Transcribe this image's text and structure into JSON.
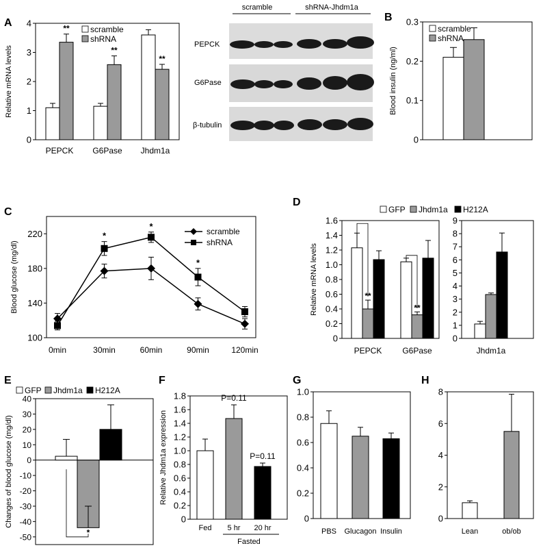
{
  "panel_labels": [
    "A",
    "B",
    "C",
    "D",
    "E",
    "F",
    "G",
    "H"
  ],
  "legend": {
    "scramble": "scramble",
    "shRNA": "shRNA",
    "GFP": "GFP",
    "Jhdm1a": "Jhdm1a",
    "H212A": "H212A"
  },
  "sig": {
    "double": "**",
    "single": "*"
  },
  "blot": {
    "group_labels": [
      "scramble",
      "shRNA-Jhdm1a"
    ],
    "bands": [
      "PEPCK",
      "G6Pase",
      "β-tubulin"
    ]
  },
  "colors": {
    "white": "#ffffff",
    "gray": "#9a9a9a",
    "black": "#000000"
  },
  "chart_data": [
    {
      "id": "A",
      "type": "bar",
      "ylabel": "Relative mRNA levels",
      "ylim": [
        0,
        4
      ],
      "yticks": [
        0,
        1,
        2,
        3,
        4
      ],
      "categories": [
        "PEPCK",
        "G6Pase",
        "Jhdm1a"
      ],
      "legend": [
        "scramble",
        "shRNA"
      ],
      "series": [
        {
          "name": "scramble",
          "color": "white",
          "values": [
            1.1,
            1.15,
            3.6
          ],
          "errors": [
            0.15,
            0.1,
            0.18
          ]
        },
        {
          "name": "shRNA",
          "color": "gray",
          "values": [
            3.35,
            2.58,
            2.42
          ],
          "errors": [
            0.28,
            0.3,
            0.17
          ]
        }
      ],
      "annotations": [
        "**",
        "**",
        "**"
      ]
    },
    {
      "id": "B",
      "type": "bar",
      "ylabel": "Blood insulin (ng/ml)",
      "ylim": [
        0,
        0.3
      ],
      "yticks": [
        0,
        0.1,
        0.2,
        0.3
      ],
      "categories": [
        ""
      ],
      "legend": [
        "scramble",
        "shRNA"
      ],
      "series": [
        {
          "name": "scramble",
          "color": "white",
          "values": [
            0.21
          ],
          "errors": [
            0.025
          ]
        },
        {
          "name": "shRNA",
          "color": "gray",
          "values": [
            0.255
          ],
          "errors": [
            0.03
          ]
        }
      ]
    },
    {
      "id": "C",
      "type": "line",
      "ylabel": "Blood glucose (mg/dl)",
      "ylim": [
        100,
        240
      ],
      "yticks": [
        100,
        140,
        180,
        220
      ],
      "x": [
        "0min",
        "30min",
        "60min",
        "90min",
        "120min"
      ],
      "series": [
        {
          "name": "scramble",
          "marker": "diamond",
          "values": [
            122,
            177,
            180,
            139,
            116
          ],
          "errors": [
            6,
            8,
            13,
            7,
            6
          ]
        },
        {
          "name": "shRNA",
          "marker": "square",
          "values": [
            114,
            203,
            216,
            170,
            130
          ],
          "errors": [
            5,
            8,
            6,
            10,
            6
          ]
        }
      ],
      "annotations": [
        "",
        "*",
        "*",
        "*",
        ""
      ]
    },
    {
      "id": "D1",
      "type": "bar",
      "ylabel": "Relative mRNA levels",
      "ylim": [
        0,
        1.6
      ],
      "yticks": [
        0,
        0.2,
        0.4,
        0.6,
        0.8,
        1.0,
        1.2,
        1.4,
        1.6
      ],
      "ytick_labels": [
        "0",
        "0.2",
        "0.4",
        "0.6",
        "0.8",
        "1.0",
        "1.2",
        "1.4",
        "1.6"
      ],
      "categories": [
        "PEPCK",
        "G6Pase"
      ],
      "legend": [
        "GFP",
        "Jhdm1a",
        "H212A"
      ],
      "series": [
        {
          "name": "GFP",
          "color": "white",
          "values": [
            1.23,
            1.04
          ],
          "errors": [
            0.2,
            0.05
          ]
        },
        {
          "name": "Jhdm1a",
          "color": "gray",
          "values": [
            0.4,
            0.32
          ],
          "errors": [
            0.12,
            0.04
          ]
        },
        {
          "name": "H212A",
          "color": "black",
          "values": [
            1.07,
            1.09
          ],
          "errors": [
            0.12,
            0.24
          ]
        }
      ],
      "annotations": [
        "**",
        "**"
      ]
    },
    {
      "id": "D2",
      "type": "bar",
      "ylim": [
        0,
        9
      ],
      "yticks": [
        0,
        1,
        2,
        3,
        4,
        5,
        6,
        7,
        8,
        9
      ],
      "categories": [
        "Jhdm1a"
      ],
      "series": [
        {
          "name": "GFP",
          "color": "white",
          "values": [
            1.1
          ],
          "errors": [
            0.2
          ]
        },
        {
          "name": "Jhdm1a",
          "color": "gray",
          "values": [
            3.35
          ],
          "errors": [
            0.12
          ]
        },
        {
          "name": "H212A",
          "color": "black",
          "values": [
            6.6
          ],
          "errors": [
            1.45
          ]
        }
      ]
    },
    {
      "id": "E",
      "type": "bar",
      "ylabel": "Changes of blood glucose (mg/dl)",
      "ylim": [
        -55,
        40
      ],
      "yticks": [
        -50,
        -40,
        -30,
        -20,
        -10,
        0,
        10,
        20,
        30,
        40
      ],
      "categories": [
        ""
      ],
      "legend": [
        "GFP",
        "Jhdm1a",
        "H212A"
      ],
      "series": [
        {
          "name": "GFP",
          "color": "white",
          "values": [
            2.5
          ],
          "errors": [
            11
          ]
        },
        {
          "name": "Jhdm1a",
          "color": "gray",
          "values": [
            -44
          ],
          "errors": [
            14
          ]
        },
        {
          "name": "H212A",
          "color": "black",
          "values": [
            20
          ],
          "errors": [
            16
          ]
        }
      ],
      "annotations": [
        "*"
      ]
    },
    {
      "id": "F",
      "type": "bar",
      "ylabel": "Relative Jhdm1a expression",
      "ylim": [
        0,
        1.8
      ],
      "yticks": [
        0,
        0.2,
        0.4,
        0.6,
        0.8,
        1.0,
        1.2,
        1.4,
        1.6,
        1.8
      ],
      "ytick_labels": [
        "0",
        "0.2",
        "0.4",
        "0.6",
        "0.8",
        "1.0",
        "1.2",
        "1.4",
        "1.6",
        "1.8"
      ],
      "categories": [
        "Fed",
        "5 hr",
        "20 hr"
      ],
      "group_label": "Fasted",
      "values": [
        1.0,
        1.47,
        0.77
      ],
      "errors": [
        0.17,
        0.2,
        0.05
      ],
      "colors": [
        "white",
        "gray",
        "black"
      ],
      "annotations": [
        "",
        "P=0.11",
        "P=0.11"
      ]
    },
    {
      "id": "G",
      "type": "bar",
      "ylim": [
        0,
        1.0
      ],
      "yticks": [
        0,
        0.2,
        0.4,
        0.6,
        0.8,
        1.0
      ],
      "ytick_labels": [
        "0",
        "0.2",
        "0.4",
        "0.6",
        "0.8",
        "1.0"
      ],
      "categories": [
        "PBS",
        "Glucagon",
        "Insulin"
      ],
      "values": [
        0.75,
        0.65,
        0.63
      ],
      "errors": [
        0.1,
        0.07,
        0.045
      ],
      "colors": [
        "white",
        "gray",
        "black"
      ]
    },
    {
      "id": "H",
      "type": "bar",
      "ylim": [
        0,
        8
      ],
      "yticks": [
        0,
        2,
        4,
        6,
        8
      ],
      "categories": [
        "Lean",
        "ob/ob"
      ],
      "values": [
        1.0,
        5.5
      ],
      "errors": [
        0.12,
        2.35
      ],
      "colors": [
        "white",
        "gray"
      ]
    }
  ]
}
